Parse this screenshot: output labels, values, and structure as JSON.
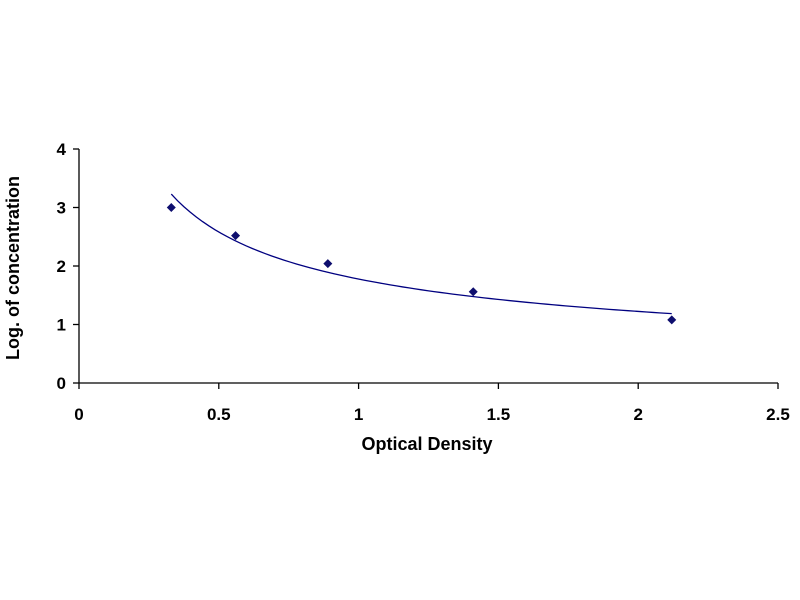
{
  "chart_data": {
    "type": "scatter",
    "xlabel": "Optical Density",
    "ylabel": "Log. of concentration",
    "xlim": [
      0,
      2.5
    ],
    "ylim": [
      0,
      4
    ],
    "xticks": [
      0,
      0.5,
      1,
      1.5,
      2,
      2.5
    ],
    "yticks": [
      0,
      1,
      2,
      3,
      4
    ],
    "xtick_labels": [
      "0",
      "0.5",
      "1",
      "1.5",
      "2",
      "2.5"
    ],
    "ytick_labels": [
      "0",
      "1",
      "2",
      "3",
      "4"
    ],
    "grid": false,
    "trendline": "power",
    "series": [
      {
        "x": [
          0.33,
          0.56,
          0.89,
          1.41,
          2.12
        ],
        "y": [
          3.0,
          2.52,
          2.04,
          1.56,
          1.08
        ]
      }
    ],
    "colors": {
      "marker": "#0e0e6e",
      "curve": "#000080",
      "axis": "#000000"
    }
  }
}
